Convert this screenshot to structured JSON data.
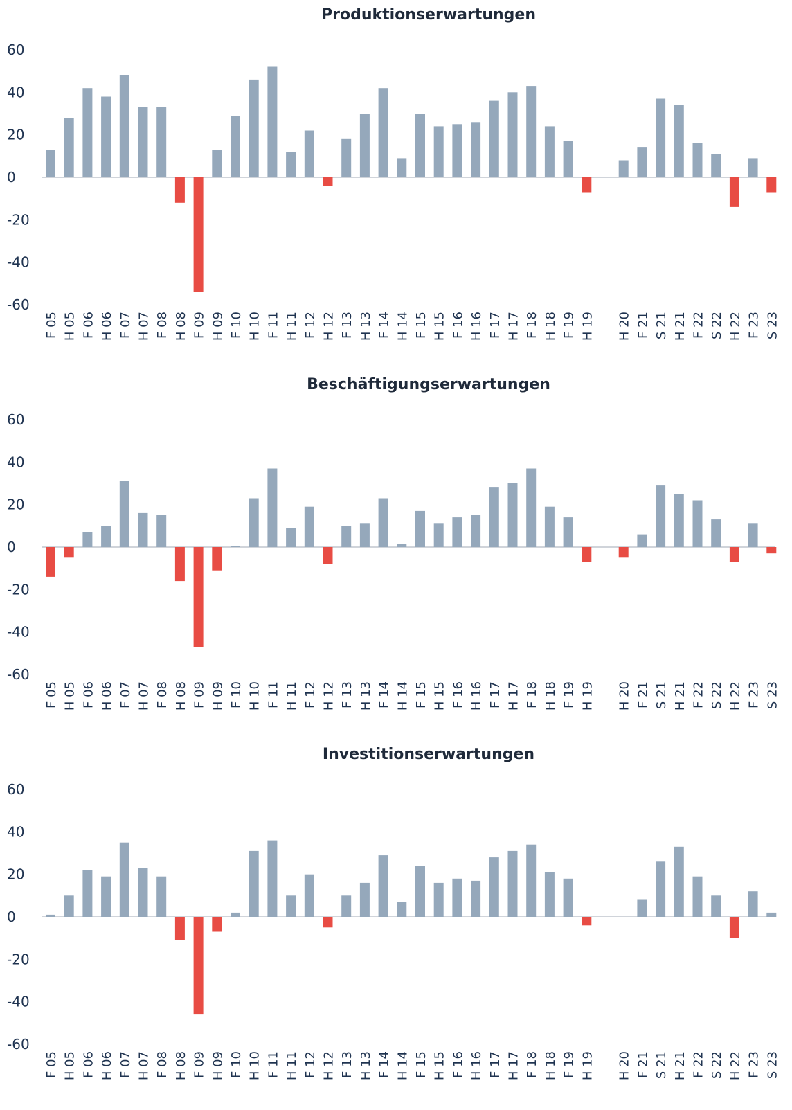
{
  "colors": {
    "positive": "#95a8bb",
    "negative": "#e84c44"
  },
  "categories": [
    "F 05",
    "H 05",
    "F 06",
    "H 06",
    "F 07",
    "H 07",
    "F 08",
    "H 08",
    "F 09",
    "H 09",
    "F 10",
    "H 10",
    "F 11",
    "H 11",
    "F 12",
    "H 12",
    "F 13",
    "H 13",
    "F 14",
    "H 14",
    "F 15",
    "H 15",
    "F 16",
    "H 16",
    "F 17",
    "H 17",
    "F 18",
    "H 18",
    "F 19",
    "H 19",
    "",
    "H 20",
    "F 21",
    "S 21",
    "H 21",
    "F 22",
    "S 22",
    "H 22",
    "F 23",
    "S 23"
  ],
  "chart_data": [
    {
      "type": "bar",
      "title": "Produktionserwartungen",
      "ylim": [
        -60,
        60
      ],
      "yticks": [
        60,
        40,
        20,
        0,
        -20,
        -40,
        -60
      ],
      "categories": [
        "F 05",
        "H 05",
        "F 06",
        "H 06",
        "F 07",
        "H 07",
        "F 08",
        "H 08",
        "F 09",
        "H 09",
        "F 10",
        "H 10",
        "F 11",
        "H 11",
        "F 12",
        "H 12",
        "F 13",
        "H 13",
        "F 14",
        "H 14",
        "F 15",
        "H 15",
        "F 16",
        "H 16",
        "F 17",
        "H 17",
        "F 18",
        "H 18",
        "F 19",
        "H 19",
        "",
        "H 20",
        "F 21",
        "S 21",
        "H 21",
        "F 22",
        "S 22",
        "H 22",
        "F 23",
        "S 23"
      ],
      "values": [
        13,
        28,
        42,
        38,
        48,
        33,
        33,
        -12,
        -54,
        13,
        29,
        46,
        52,
        12,
        22,
        -4,
        18,
        30,
        42,
        9,
        30,
        24,
        25,
        26,
        36,
        40,
        43,
        24,
        17,
        -7,
        null,
        8,
        14,
        37,
        34,
        16,
        11,
        -14,
        9,
        -7
      ]
    },
    {
      "type": "bar",
      "title": "Beschäftigungserwartungen",
      "ylim": [
        -60,
        60
      ],
      "yticks": [
        60,
        40,
        20,
        0,
        -20,
        -40,
        -60
      ],
      "categories": [
        "F 05",
        "H 05",
        "F 06",
        "H 06",
        "F 07",
        "H 07",
        "F 08",
        "H 08",
        "F 09",
        "H 09",
        "F 10",
        "H 10",
        "F 11",
        "H 11",
        "F 12",
        "H 12",
        "F 13",
        "H 13",
        "F 14",
        "H 14",
        "F 15",
        "H 15",
        "F 16",
        "H 16",
        "F 17",
        "H 17",
        "F 18",
        "H 18",
        "F 19",
        "H 19",
        "",
        "H 20",
        "F 21",
        "S 21",
        "H 21",
        "F 22",
        "S 22",
        "H 22",
        "F 23",
        "S 23"
      ],
      "values": [
        -14,
        -5,
        7,
        10,
        31,
        16,
        15,
        -16,
        -47,
        -11,
        0.5,
        23,
        37,
        9,
        19,
        -8,
        10,
        11,
        23,
        1.5,
        17,
        11,
        14,
        15,
        28,
        30,
        37,
        19,
        14,
        -7,
        null,
        -5,
        6,
        29,
        25,
        22,
        13,
        -7,
        11,
        -3
      ]
    },
    {
      "type": "bar",
      "title": "Investitionserwartungen",
      "ylim": [
        -60,
        60
      ],
      "yticks": [
        60,
        40,
        20,
        0,
        -20,
        -40,
        -60
      ],
      "categories": [
        "F 05",
        "H 05",
        "F 06",
        "H 06",
        "F 07",
        "H 07",
        "F 08",
        "H 08",
        "F 09",
        "H 09",
        "F 10",
        "H 10",
        "F 11",
        "H 11",
        "F 12",
        "H 12",
        "F 13",
        "H 13",
        "F 14",
        "H 14",
        "F 15",
        "H 15",
        "F 16",
        "H 16",
        "F 17",
        "H 17",
        "F 18",
        "H 18",
        "F 19",
        "H 19",
        "",
        "H 20",
        "F 21",
        "S 21",
        "H 21",
        "F 22",
        "S 22",
        "H 22",
        "F 23",
        "S 23"
      ],
      "values": [
        1,
        10,
        22,
        19,
        35,
        23,
        19,
        -11,
        -46,
        -7,
        2,
        31,
        36,
        10,
        20,
        -5,
        10,
        16,
        29,
        7,
        24,
        16,
        18,
        17,
        28,
        31,
        34,
        21,
        18,
        -4,
        null,
        null,
        8,
        26,
        33,
        19,
        10,
        -10,
        12,
        2
      ]
    }
  ]
}
